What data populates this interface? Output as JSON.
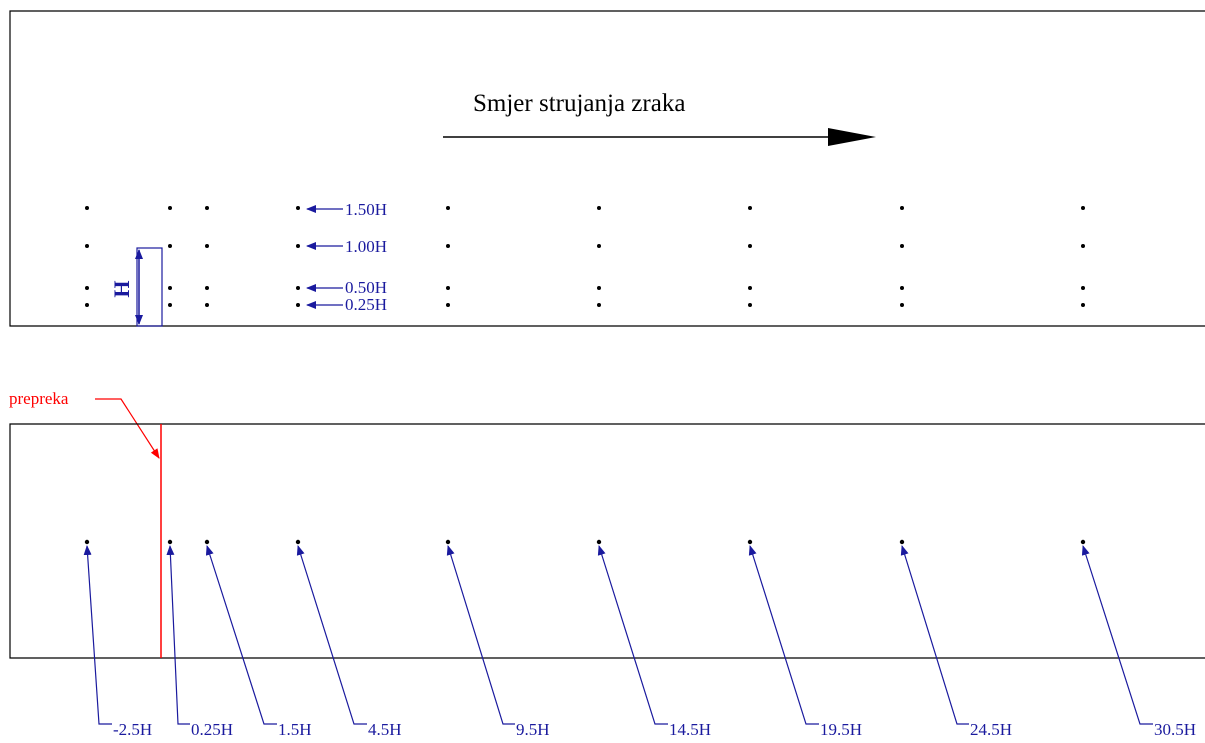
{
  "title": "Smjer strujanja zraka",
  "obstacle_label": "prepreka",
  "height_symbol": "H",
  "heights": [
    "1.50H",
    "1.00H",
    "0.50H",
    "0.25H"
  ],
  "positions": [
    "-2.5H",
    "0.25H",
    "1.5H",
    "4.5H",
    "9.5H",
    "14.5H",
    "19.5H",
    "24.5H",
    "30.5H"
  ],
  "colors": {
    "annotation": "#1a1a9e",
    "obstacle": "#ff0000",
    "outline": "#000000"
  }
}
